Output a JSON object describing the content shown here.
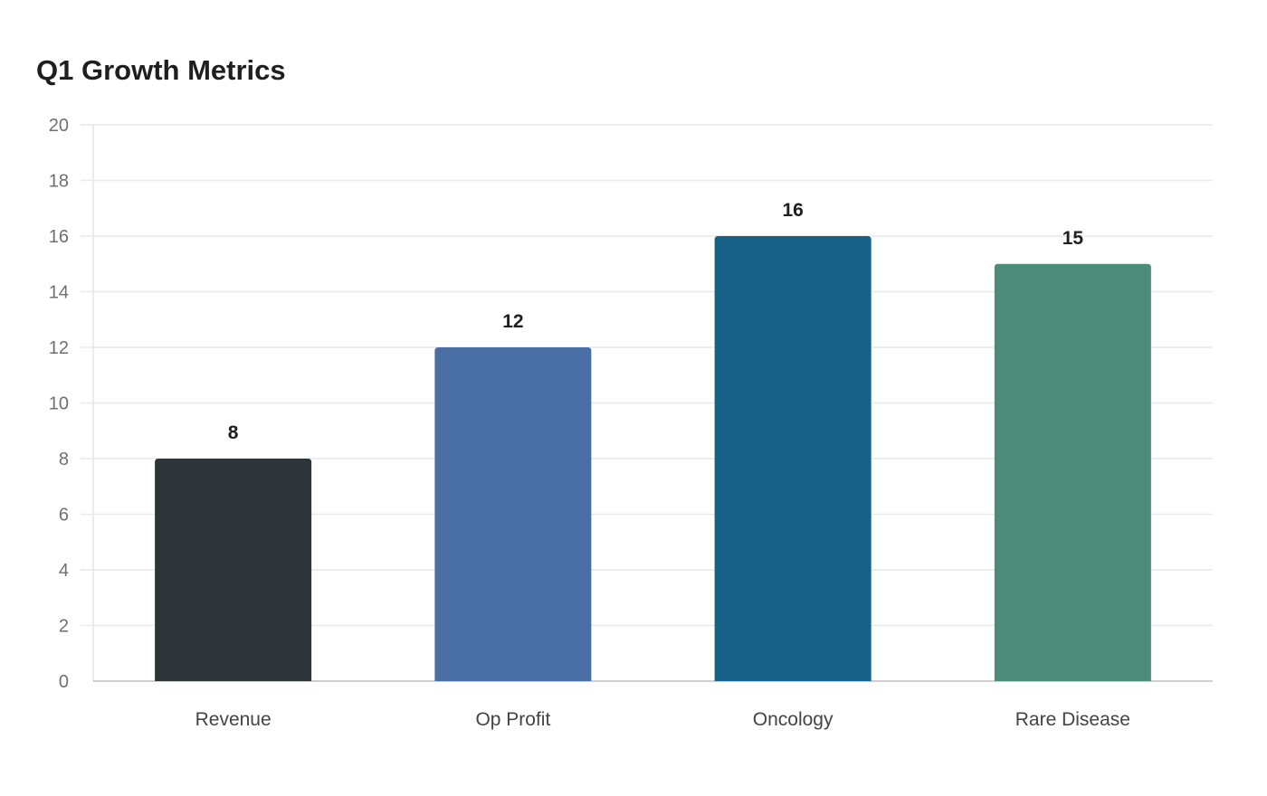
{
  "chart_data": {
    "type": "bar",
    "title": "Q1 Growth Metrics",
    "categories": [
      "Revenue",
      "Op Profit",
      "Oncology",
      "Rare Disease"
    ],
    "values": [
      8,
      12,
      16,
      15
    ],
    "colors": [
      "#2d3538",
      "#4a6fa5",
      "#176088",
      "#4d8c7a"
    ],
    "xlabel": "",
    "ylabel": "",
    "ylim": [
      0,
      20
    ],
    "yticks": [
      "0",
      "2",
      "4",
      "6",
      "8",
      "10",
      "12",
      "14",
      "16",
      "18",
      "20"
    ],
    "grid": true,
    "legend": "none"
  }
}
